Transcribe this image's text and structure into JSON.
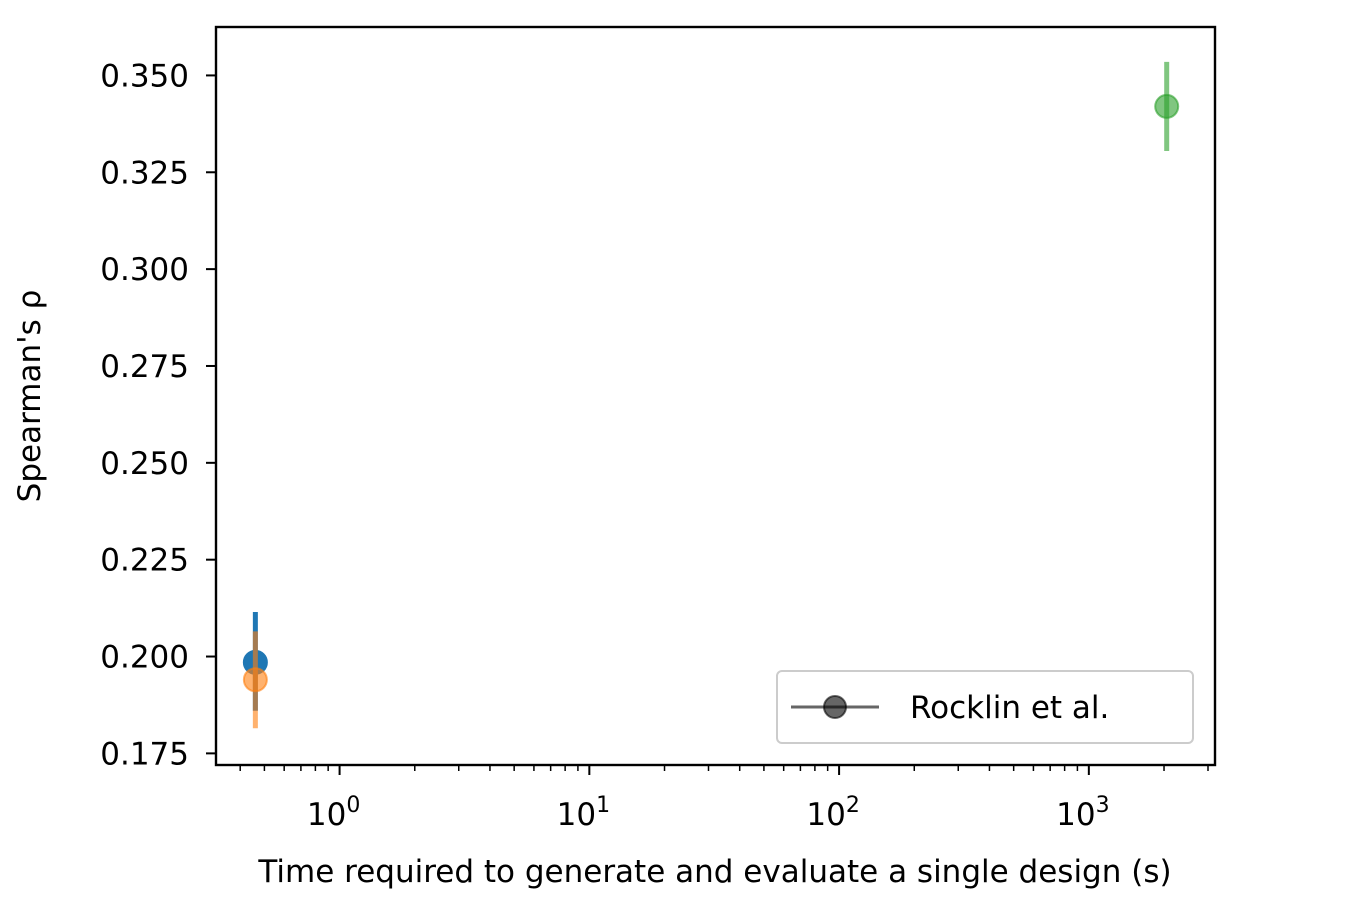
{
  "chart_data": {
    "type": "scatter",
    "title": "",
    "xlabel": "Time required to generate and evaluate a single design (s)",
    "ylabel": "Spearman's ρ",
    "xscale": "log",
    "xlim": [
      0.32,
      3200
    ],
    "ylim": [
      0.172,
      0.3625
    ],
    "x_ticks": [
      {
        "value": 1,
        "base": "10",
        "exp": "0"
      },
      {
        "value": 10,
        "base": "10",
        "exp": "1"
      },
      {
        "value": 100,
        "base": "10",
        "exp": "2"
      },
      {
        "value": 1000,
        "base": "10",
        "exp": "3"
      }
    ],
    "y_ticks": [
      {
        "value": 0.175,
        "label": "0.175"
      },
      {
        "value": 0.2,
        "label": "0.200"
      },
      {
        "value": 0.225,
        "label": "0.225"
      },
      {
        "value": 0.25,
        "label": "0.250"
      },
      {
        "value": 0.275,
        "label": "0.275"
      },
      {
        "value": 0.3,
        "label": "0.300"
      },
      {
        "value": 0.325,
        "label": "0.325"
      },
      {
        "value": 0.35,
        "label": "0.350"
      }
    ],
    "grid": false,
    "legend_position": "bottom-right",
    "series": [
      {
        "color": "#1f77b4",
        "opacity": 1.0,
        "points": [
          {
            "x": 0.46,
            "y": 0.1985,
            "err_low": 0.186,
            "err_high": 0.2115
          }
        ]
      },
      {
        "color": "#ff7f0e",
        "opacity": 0.6,
        "points": [
          {
            "x": 0.46,
            "y": 0.194,
            "err_low": 0.1815,
            "err_high": 0.2065
          }
        ]
      },
      {
        "name": "Rocklin et al.",
        "color": "#2ca02c",
        "opacity": 0.6,
        "points": [
          {
            "x": 2050,
            "y": 0.342,
            "err_low": 0.3305,
            "err_high": 0.3535
          }
        ]
      }
    ],
    "legend": [
      {
        "label": "Rocklin et al.",
        "color": "#000000",
        "opacity": 0.6
      }
    ]
  }
}
